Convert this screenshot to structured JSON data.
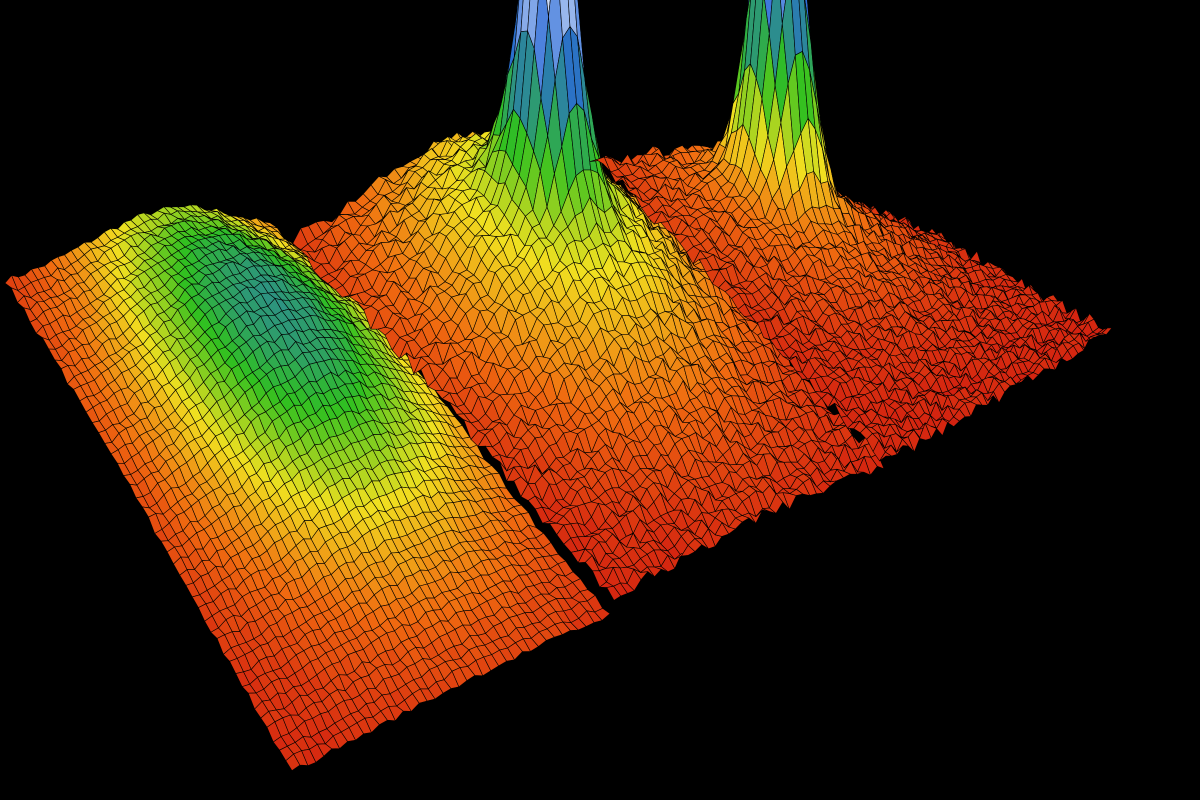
{
  "chart_data": {
    "type": "surface",
    "title": "",
    "xlabel": "",
    "ylabel": "",
    "zlabel": "",
    "grid": false,
    "legend": "none",
    "background": "#000000",
    "colormap": [
      "#d01a10",
      "#f06a10",
      "#f0e020",
      "#30c020",
      "#2a6ad8",
      "#ffffff"
    ],
    "panels": [
      {
        "broad_component": 0.55,
        "narrow_component": 0.0
      },
      {
        "broad_component": 0.35,
        "narrow_component": 0.9
      },
      {
        "broad_component": 0.15,
        "narrow_component": 1.0
      }
    ]
  }
}
